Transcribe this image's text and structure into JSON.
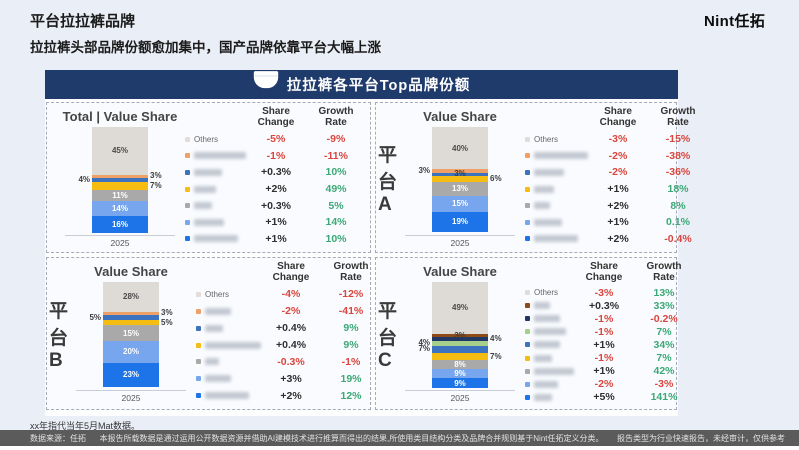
{
  "page": {
    "title": "平台拉拉裤品牌",
    "subtitle": "拉拉裤头部品牌份额愈加集中，国产品牌依靠平台大幅上涨",
    "logo": "Nint任拓",
    "note": "xx年指代当年5月Mat数据。",
    "footer": {
      "source": "数据来源：任拓",
      "disclaimer": "本报告所载数据是通过运用公开数据资源并借助AI建模技术进行推算而得出的结果,所使用类目结构分类及品牌合并规则基于Nint任拓定义分类。",
      "type": "报告类型为行业快速报告，未经审计，仅供参考"
    }
  },
  "banner": {
    "title": "拉拉裤各平台Top品牌份额",
    "icon": "diaper-icon"
  },
  "labels": {
    "share_header": "Share\nChange",
    "growth_header": "Growth\nRate",
    "others": "Others"
  },
  "colors": {
    "banner_bg": "#1F3B6C",
    "slide_bg": "#EAEEF6",
    "panel_border": "#A4ABB6",
    "negative": "#D9463E",
    "share_positive": "#2F2F2F",
    "growth_positive": "#3CA878",
    "others": "#DEDAD5",
    "orange": "#EFA066",
    "blue": "#3D72BE",
    "yellow": "#F5BD12",
    "gray": "#A9A9A9",
    "light_blue": "#77A5EE",
    "dark_blue": "#1D74E9",
    "brown": "#8E4A17",
    "navy": "#203765",
    "green": "#A6CF8C"
  },
  "chart_data": [
    {
      "type": "bar",
      "subtype": "stacked-100",
      "title": "Total | Value Share",
      "platform": "",
      "year": "2025",
      "segments": [
        {
          "value": 45,
          "color": "#DEDAD5",
          "label_pos": "in",
          "text": "dark"
        },
        {
          "value": 3,
          "color": "#EFA066",
          "label_pos": "right"
        },
        {
          "value": 4,
          "color": "#3D72BE",
          "label_pos": "left"
        },
        {
          "value": 7,
          "color": "#F5BD12",
          "label_pos": "right"
        },
        {
          "value": 11,
          "color": "#A9A9A9",
          "label_pos": "in",
          "text": "light"
        },
        {
          "value": 14,
          "color": "#77A5EE",
          "label_pos": "in",
          "text": "light"
        },
        {
          "value": 16,
          "color": "#1D74E9",
          "label_pos": "in",
          "text": "light"
        }
      ],
      "rows": [
        {
          "name": "Others",
          "dot": "#E2DDD8",
          "share": "-5%",
          "growth": "-9%"
        },
        {
          "name": "",
          "blur": 52,
          "dot": "#EFA066",
          "share": "-1%",
          "growth": "-11%"
        },
        {
          "name": "",
          "blur": 28,
          "dot": "#3D72BE",
          "share": "+0.3%",
          "growth": "10%"
        },
        {
          "name": "",
          "blur": 22,
          "dot": "#F5BD12",
          "share": "+2%",
          "growth": "49%"
        },
        {
          "name": "",
          "blur": 18,
          "dot": "#A9A9A9",
          "share": "+0.3%",
          "growth": "5%"
        },
        {
          "name": "",
          "blur": 30,
          "dot": "#77A5EE",
          "share": "+1%",
          "growth": "14%"
        },
        {
          "name": "",
          "blur": 44,
          "dot": "#1D74E9",
          "share": "+1%",
          "growth": "10%"
        }
      ]
    },
    {
      "type": "bar",
      "subtype": "stacked-100",
      "title": "Value Share",
      "platform": "平台A",
      "year": "2025",
      "segments": [
        {
          "value": 40,
          "color": "#DEDAD5",
          "label_pos": "in",
          "text": "dark"
        },
        {
          "value": 3,
          "color": "#EFA066",
          "label_pos": "left"
        },
        {
          "value": 3,
          "color": "#3D72BE",
          "label_pos": "center"
        },
        {
          "value": 6,
          "color": "#F5BD12",
          "label_pos": "right"
        },
        {
          "value": 13,
          "color": "#A9A9A9",
          "label_pos": "in",
          "text": "light"
        },
        {
          "value": 15,
          "color": "#77A5EE",
          "label_pos": "in",
          "text": "light"
        },
        {
          "value": 19,
          "color": "#1D74E9",
          "label_pos": "in",
          "text": "light"
        }
      ],
      "rows": [
        {
          "name": "Others",
          "dot": "#E2DDD8",
          "share": "-3%",
          "growth": "-15%"
        },
        {
          "name": "",
          "blur": 54,
          "dot": "#EFA066",
          "share": "-2%",
          "growth": "-38%"
        },
        {
          "name": "",
          "blur": 30,
          "dot": "#3D72BE",
          "share": "-2%",
          "growth": "-36%"
        },
        {
          "name": "",
          "blur": 20,
          "dot": "#F5BD12",
          "share": "+1%",
          "growth": "18%"
        },
        {
          "name": "",
          "blur": 16,
          "dot": "#A9A9A9",
          "share": "+2%",
          "growth": "8%"
        },
        {
          "name": "",
          "blur": 28,
          "dot": "#77A5EE",
          "share": "+1%",
          "growth": "0.1%"
        },
        {
          "name": "",
          "blur": 44,
          "dot": "#1D74E9",
          "share": "+2%",
          "growth": "-0.4%"
        }
      ]
    },
    {
      "type": "bar",
      "subtype": "stacked-100",
      "title": "Value Share",
      "platform": "平台B",
      "year": "2025",
      "segments": [
        {
          "value": 28,
          "color": "#DEDAD5",
          "label_pos": "in",
          "text": "dark"
        },
        {
          "value": 3,
          "color": "#EFA066",
          "label_pos": "right"
        },
        {
          "value": 5,
          "color": "#3D72BE",
          "label_pos": "left"
        },
        {
          "value": 5,
          "color": "#F5BD12",
          "label_pos": "right"
        },
        {
          "value": 15,
          "color": "#A9A9A9",
          "label_pos": "in",
          "text": "light"
        },
        {
          "value": 20,
          "color": "#77A5EE",
          "label_pos": "in",
          "text": "light"
        },
        {
          "value": 23,
          "color": "#1D74E9",
          "label_pos": "in",
          "text": "light"
        }
      ],
      "rows": [
        {
          "name": "Others",
          "dot": "#E2DDD8",
          "share": "-4%",
          "growth": "-12%"
        },
        {
          "name": "",
          "blur": 26,
          "dot": "#EFA066",
          "share": "-2%",
          "growth": "-41%"
        },
        {
          "name": "",
          "blur": 18,
          "dot": "#3D72BE",
          "share": "+0.4%",
          "growth": "9%"
        },
        {
          "name": "",
          "blur": 56,
          "dot": "#F5BD12",
          "share": "+0.4%",
          "growth": "9%"
        },
        {
          "name": "",
          "blur": 14,
          "dot": "#A9A9A9",
          "share": "-0.3%",
          "growth": "-1%"
        },
        {
          "name": "",
          "blur": 26,
          "dot": "#77A5EE",
          "share": "+3%",
          "growth": "19%"
        },
        {
          "name": "",
          "blur": 44,
          "dot": "#1D74E9",
          "share": "+2%",
          "growth": "12%"
        }
      ]
    },
    {
      "type": "bar",
      "subtype": "stacked-100",
      "title": "Value Share",
      "platform": "平台C",
      "year": "2025",
      "segments": [
        {
          "value": 49,
          "color": "#DEDAD5",
          "label_pos": "in",
          "text": "dark"
        },
        {
          "value": 3,
          "color": "#8E4A17",
          "label_pos": "center"
        },
        {
          "value": 4,
          "color": "#203765",
          "label_pos": "right"
        },
        {
          "value": 4,
          "color": "#A6CF8C",
          "label_pos": "left"
        },
        {
          "value": 7,
          "color": "#3D72BE",
          "label_pos": "left"
        },
        {
          "value": 7,
          "color": "#F5BD12",
          "label_pos": "right"
        },
        {
          "value": 8,
          "color": "#A9A9A9",
          "label_pos": "in",
          "text": "light"
        },
        {
          "value": 9,
          "color": "#77A5EE",
          "label_pos": "in",
          "text": "light"
        },
        {
          "value": 9,
          "color": "#1D74E9",
          "label_pos": "in",
          "text": "light"
        }
      ],
      "rows": [
        {
          "name": "Others",
          "dot": "#E2DDD8",
          "share": "-3%",
          "growth": "13%"
        },
        {
          "name": "",
          "blur": 16,
          "dot": "#8E4A17",
          "share": "+0.3%",
          "growth": "33%"
        },
        {
          "name": "",
          "blur": 26,
          "dot": "#203765",
          "share": "-1%",
          "growth": "-0.2%"
        },
        {
          "name": "",
          "blur": 32,
          "dot": "#A6CF8C",
          "share": "-1%",
          "growth": "7%"
        },
        {
          "name": "",
          "blur": 26,
          "dot": "#3D72BE",
          "share": "+1%",
          "growth": "34%"
        },
        {
          "name": "",
          "blur": 18,
          "dot": "#F5BD12",
          "share": "-1%",
          "growth": "7%"
        },
        {
          "name": "",
          "blur": 40,
          "dot": "#A9A9A9",
          "share": "+1%",
          "growth": "42%"
        },
        {
          "name": "",
          "blur": 24,
          "dot": "#77A5EE",
          "share": "-2%",
          "growth": "-3%"
        },
        {
          "name": "",
          "blur": 18,
          "dot": "#1D74E9",
          "share": "+5%",
          "growth": "141%"
        }
      ]
    }
  ]
}
